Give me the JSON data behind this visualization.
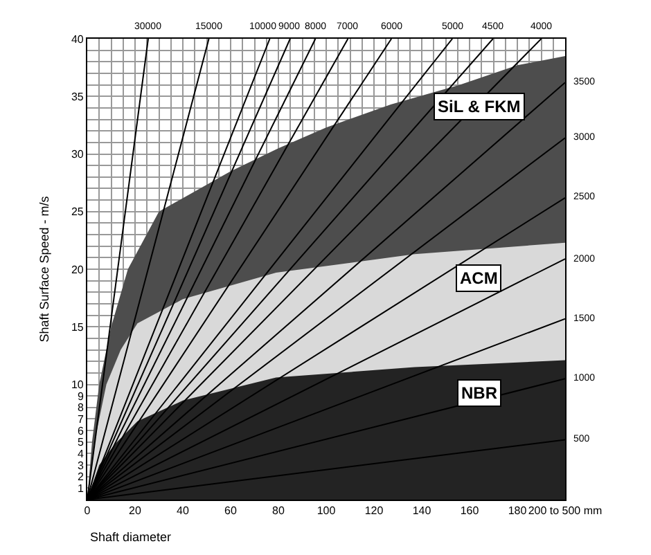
{
  "chart_data": {
    "type": "line",
    "ylabel": "Shaft Surface Speed - m/s",
    "xlabel": "Shaft diameter",
    "xlim": [
      0,
      200
    ],
    "ylim": [
      0,
      40
    ],
    "xticks": [
      0,
      20,
      40,
      60,
      80,
      100,
      120,
      140,
      160,
      180,
      {
        "value": 200,
        "label": "200 to 500 mm"
      }
    ],
    "yticks": [
      1,
      2,
      3,
      4,
      5,
      6,
      7,
      8,
      9,
      10,
      15,
      20,
      25,
      30,
      35,
      40
    ],
    "grid": true,
    "legend": false,
    "series": [
      {
        "name": "SiL & FKM",
        "type": "area",
        "color": "#4d4d4d",
        "x": [
          0,
          2,
          5,
          10,
          17,
          30,
          60,
          80,
          100,
          127,
          156,
          180,
          200
        ],
        "values": [
          0,
          5,
          10,
          15,
          20,
          25,
          28.5,
          30.5,
          32.3,
          34.3,
          36,
          37.7,
          38.5
        ]
      },
      {
        "name": "ACM",
        "type": "area",
        "color": "#d9d9d9",
        "x": [
          0,
          3,
          8,
          14,
          21,
          40,
          79,
          137,
          200
        ],
        "values": [
          0,
          5,
          10,
          13,
          15.3,
          17.4,
          19.7,
          21.3,
          22.3
        ]
      },
      {
        "name": "NBR",
        "type": "area",
        "color": "#232323",
        "x": [
          0,
          5,
          11.5,
          21,
          40,
          79,
          137,
          200
        ],
        "values": [
          0,
          3,
          4.8,
          6.8,
          8.6,
          10.6,
          11.5,
          12.1
        ]
      },
      {
        "name": "500",
        "color": "#000000",
        "x": [
          0,
          200
        ],
        "values": [
          0,
          5.2
        ]
      },
      {
        "name": "1000",
        "color": "#000000",
        "x": [
          0,
          200
        ],
        "values": [
          0,
          10.5
        ]
      },
      {
        "name": "1500",
        "color": "#000000",
        "x": [
          0,
          200
        ],
        "values": [
          0,
          15.7
        ]
      },
      {
        "name": "2000",
        "color": "#000000",
        "x": [
          0,
          200
        ],
        "values": [
          0,
          20.9
        ]
      },
      {
        "name": "2500",
        "color": "#000000",
        "x": [
          0,
          200
        ],
        "values": [
          0,
          26.2
        ]
      },
      {
        "name": "3000",
        "color": "#000000",
        "x": [
          0,
          200
        ],
        "values": [
          0,
          31.4
        ]
      },
      {
        "name": "3500",
        "color": "#000000",
        "x": [
          0,
          200
        ],
        "values": [
          0,
          36.2
        ]
      },
      {
        "name": "4000",
        "color": "#000000",
        "x": [
          0,
          190
        ],
        "values": [
          0,
          40
        ]
      },
      {
        "name": "4500",
        "color": "#000000",
        "x": [
          0,
          169.8
        ],
        "values": [
          0,
          40
        ]
      },
      {
        "name": "5000",
        "color": "#000000",
        "x": [
          0,
          152.8
        ],
        "values": [
          0,
          40
        ]
      },
      {
        "name": "6000",
        "color": "#000000",
        "x": [
          0,
          127.3
        ],
        "values": [
          0,
          40
        ]
      },
      {
        "name": "7000",
        "color": "#000000",
        "x": [
          0,
          109.1
        ],
        "values": [
          0,
          40
        ]
      },
      {
        "name": "8000",
        "color": "#000000",
        "x": [
          0,
          95.5
        ],
        "values": [
          0,
          40
        ]
      },
      {
        "name": "9000",
        "color": "#000000",
        "x": [
          0,
          84.9
        ],
        "values": [
          0,
          40
        ]
      },
      {
        "name": "10000",
        "color": "#000000",
        "x": [
          0,
          76.4
        ],
        "values": [
          0,
          40
        ]
      },
      {
        "name": "15000",
        "color": "#000000",
        "x": [
          0,
          50.9
        ],
        "values": [
          0,
          40
        ]
      },
      {
        "name": "30000",
        "color": "#000000",
        "x": [
          0,
          25.5
        ],
        "values": [
          0,
          40
        ]
      }
    ]
  }
}
